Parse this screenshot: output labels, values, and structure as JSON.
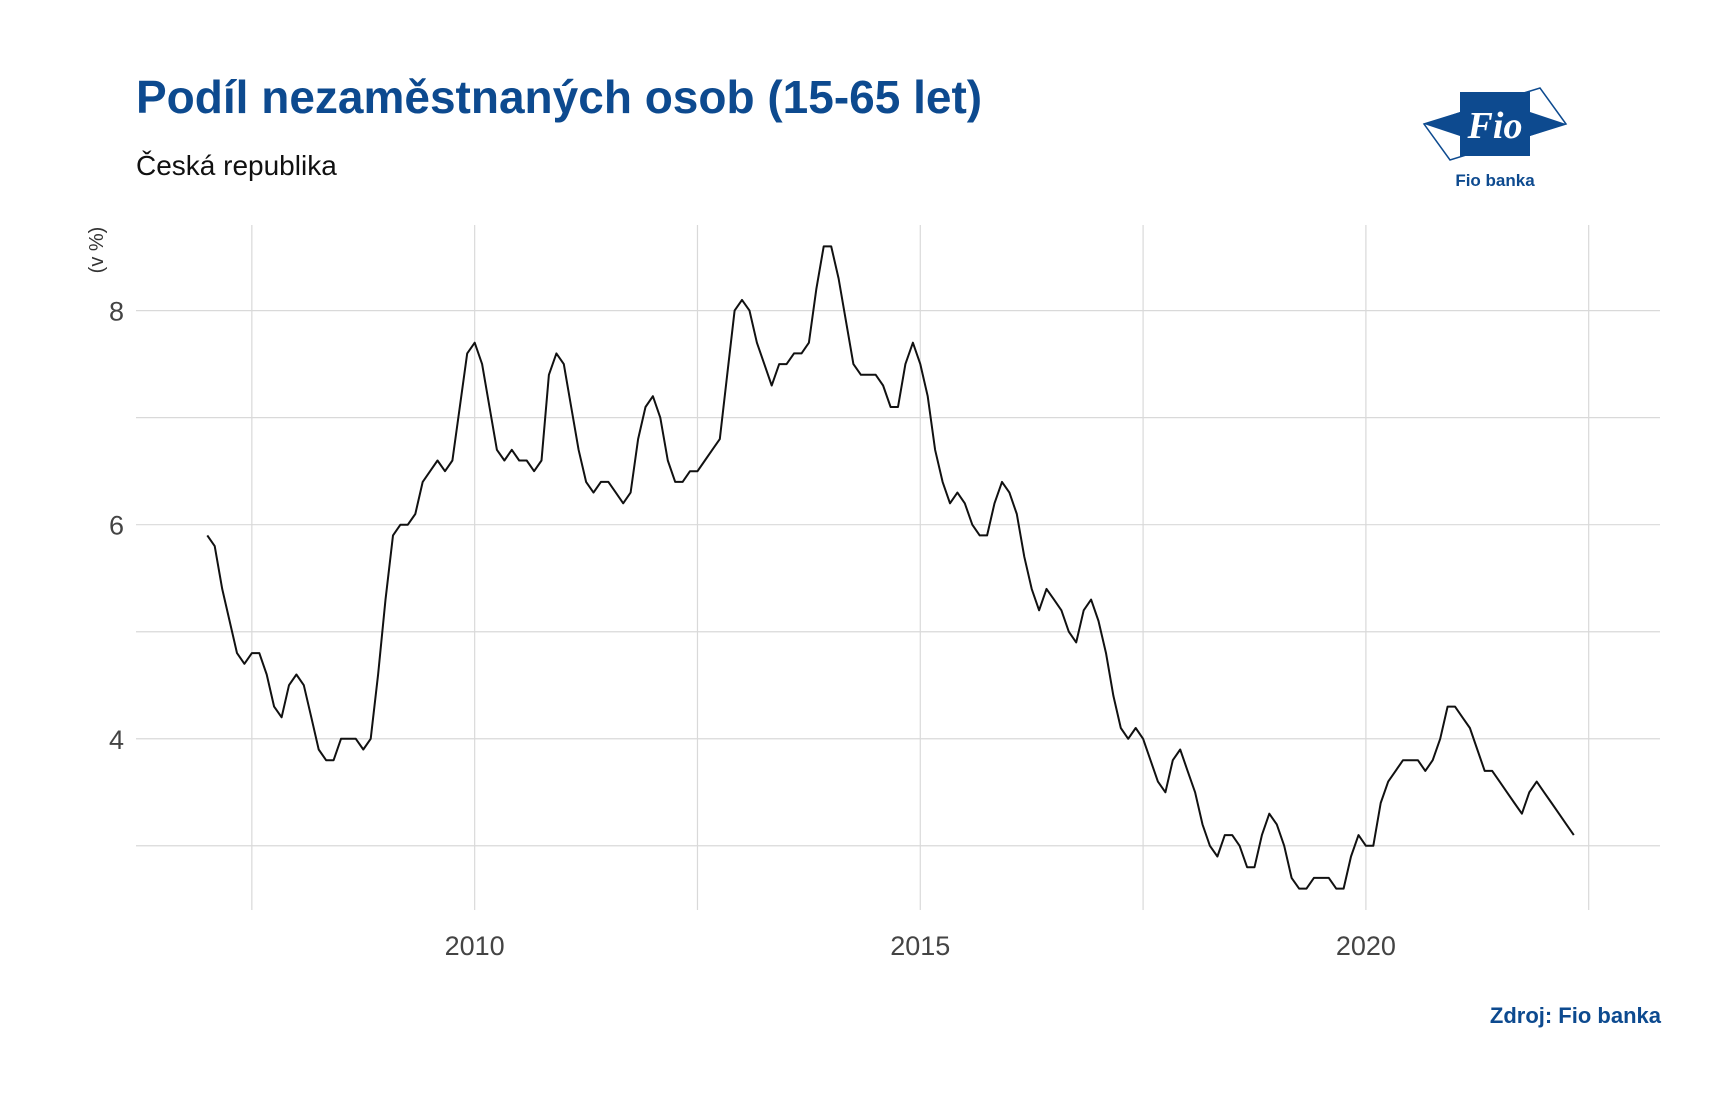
{
  "header": {
    "title": "Podíl nezaměstnaných osob (15-65 let)",
    "subtitle": "Česká republika"
  },
  "logo": {
    "mark_text": "Fio",
    "caption": "Fio banka",
    "color": "#0d4a8f"
  },
  "footer": {
    "source": "Zdroj: Fio banka"
  },
  "chart_data": {
    "type": "line",
    "title": "Podíl nezaměstnaných osob (15-65 let)",
    "subtitle": "Česká republika",
    "xlabel": "",
    "ylabel": "(v %)",
    "x_ticks": [
      2010,
      2015,
      2020
    ],
    "y_ticks": [
      4,
      6,
      8
    ],
    "xlim": [
      2006.2,
      2023.3
    ],
    "ylim": [
      2.4,
      8.8
    ],
    "grid": true,
    "line_color": "#111111",
    "series": [
      {
        "x_start": "2007-01",
        "step": "month",
        "values": [
          5.9,
          5.8,
          5.4,
          5.1,
          4.8,
          4.7,
          4.8,
          4.8,
          4.6,
          4.3,
          4.2,
          4.5,
          4.6,
          4.5,
          4.2,
          3.9,
          3.8,
          3.8,
          4.0,
          4.0,
          4.0,
          3.9,
          4.0,
          4.6,
          5.3,
          5.9,
          6.0,
          6.0,
          6.1,
          6.4,
          6.5,
          6.6,
          6.5,
          6.6,
          7.1,
          7.6,
          7.7,
          7.5,
          7.1,
          6.7,
          6.6,
          6.7,
          6.6,
          6.6,
          6.5,
          6.6,
          7.4,
          7.6,
          7.5,
          7.1,
          6.7,
          6.4,
          6.3,
          6.4,
          6.4,
          6.3,
          6.2,
          6.3,
          6.8,
          7.1,
          7.2,
          7.0,
          6.6,
          6.4,
          6.4,
          6.5,
          6.5,
          6.6,
          6.7,
          6.8,
          7.4,
          8.0,
          8.1,
          8.0,
          7.7,
          7.5,
          7.3,
          7.5,
          7.5,
          7.6,
          7.6,
          7.7,
          8.2,
          8.6,
          8.6,
          8.3,
          7.9,
          7.5,
          7.4,
          7.4,
          7.4,
          7.3,
          7.1,
          7.1,
          7.5,
          7.7,
          7.5,
          7.2,
          6.7,
          6.4,
          6.2,
          6.3,
          6.2,
          6.0,
          5.9,
          5.9,
          6.2,
          6.4,
          6.3,
          6.1,
          5.7,
          5.4,
          5.2,
          5.4,
          5.3,
          5.2,
          5.0,
          4.9,
          5.2,
          5.3,
          5.1,
          4.8,
          4.4,
          4.1,
          4.0,
          4.1,
          4.0,
          3.8,
          3.6,
          3.5,
          3.8,
          3.9,
          3.7,
          3.5,
          3.2,
          3.0,
          2.9,
          3.1,
          3.1,
          3.0,
          2.8,
          2.8,
          3.1,
          3.3,
          3.2,
          3.0,
          2.7,
          2.6,
          2.6,
          2.7,
          2.7,
          2.7,
          2.6,
          2.6,
          2.9,
          3.1,
          3.0,
          3.0,
          3.4,
          3.6,
          3.7,
          3.8,
          3.8,
          3.8,
          3.7,
          3.8,
          4.0,
          4.3,
          4.3,
          4.2,
          4.1,
          3.9,
          3.7,
          3.7,
          3.6,
          3.5,
          3.4,
          3.3,
          3.5,
          3.6,
          3.5,
          3.4,
          3.3,
          3.2,
          3.1
        ]
      }
    ]
  }
}
